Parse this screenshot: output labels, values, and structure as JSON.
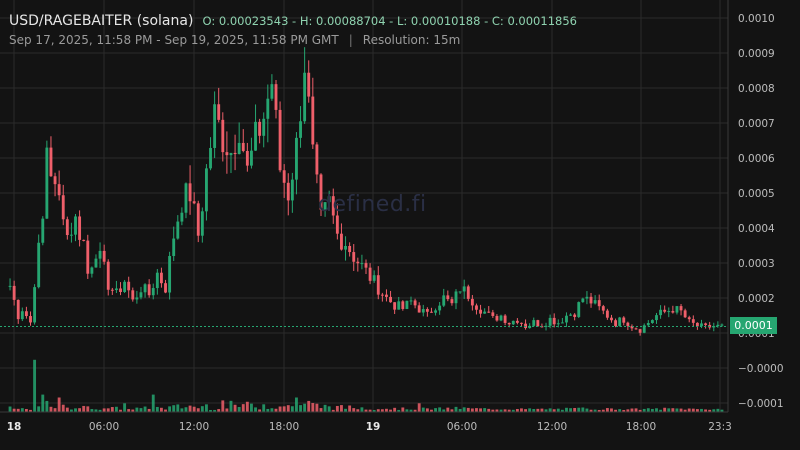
{
  "header": {
    "title": "USD/RAGEBAITER (solana)",
    "ohlc": "O: 0.00023543 - H: 0.00088704 - L: 0.00010188 - C: 0.00011856",
    "range": "Sep 17, 2025, 11:58 PM - Sep 19, 2025, 11:58 PM GMT",
    "separator": "|",
    "resolution": "Resolution: 15m"
  },
  "watermark": "defined.fi",
  "colors": {
    "up": "#26a671",
    "down": "#ef5f6a",
    "grid": "#2b2b2b",
    "background": "#131313"
  },
  "chart_data": {
    "type": "candlestick",
    "ylim": [
      -0.00012,
      0.00103
    ],
    "y_ticks": [
      "0.0010",
      "0.0009",
      "0.0008",
      "0.0007",
      "0.0006",
      "0.0005",
      "0.0004",
      "0.0003",
      "0.0002",
      "0.0001",
      "−0.0000",
      "−0.0001"
    ],
    "y_tick_values": [
      0.001,
      0.0009,
      0.0008,
      0.0007,
      0.0006,
      0.0005,
      0.0004,
      0.0003,
      0.0002,
      0.0001,
      0.0,
      -0.0001
    ],
    "x_ticks": [
      "18",
      "06:00",
      "12:00",
      "18:00",
      "19",
      "06:00",
      "12:00",
      "18:00",
      "23:3"
    ],
    "x_tick_bold": [
      true,
      false,
      false,
      false,
      true,
      false,
      false,
      false,
      false
    ],
    "current_price": 0.00011856,
    "current_price_label": "0.0001",
    "close_path_points": [
      [
        0,
        0.000235
      ],
      [
        2,
        0.00015
      ],
      [
        3,
        0.00017
      ],
      [
        5,
        0.00013
      ],
      [
        6,
        0.00025
      ],
      [
        8,
        0.00042
      ],
      [
        9,
        0.00064
      ],
      [
        11,
        0.0005
      ],
      [
        13,
        0.00046
      ],
      [
        14,
        0.00038
      ],
      [
        16,
        0.00042
      ],
      [
        18,
        0.00036
      ],
      [
        19,
        0.00027
      ],
      [
        21,
        0.00034
      ],
      [
        23,
        0.00028
      ],
      [
        24,
        0.00024
      ],
      [
        26,
        0.00021
      ],
      [
        28,
        0.00025
      ],
      [
        30,
        0.00019
      ],
      [
        32,
        0.00023
      ],
      [
        34,
        0.00021
      ],
      [
        36,
        0.00027
      ],
      [
        38,
        0.00023
      ],
      [
        40,
        0.00038
      ],
      [
        42,
        0.00048
      ],
      [
        44,
        0.0005
      ],
      [
        46,
        0.00038
      ],
      [
        48,
        0.00056
      ],
      [
        50,
        0.00072
      ],
      [
        52,
        0.00066
      ],
      [
        54,
        0.00062
      ],
      [
        56,
        0.0007
      ],
      [
        58,
        0.00056
      ],
      [
        60,
        0.00065
      ],
      [
        62,
        0.00072
      ],
      [
        64,
        0.00082
      ],
      [
        66,
        0.00057
      ],
      [
        68,
        0.0005
      ],
      [
        70,
        0.00063
      ],
      [
        72,
        0.00088
      ],
      [
        74,
        0.0006
      ],
      [
        76,
        0.00042
      ],
      [
        78,
        0.00047
      ],
      [
        80,
        0.00038
      ],
      [
        82,
        0.00036
      ],
      [
        84,
        0.00032
      ],
      [
        86,
        0.00029
      ],
      [
        88,
        0.00026
      ],
      [
        90,
        0.00023
      ],
      [
        92,
        0.0002
      ],
      [
        94,
        0.00018
      ],
      [
        96,
        0.00017
      ],
      [
        98,
        0.00019
      ],
      [
        100,
        0.00017
      ],
      [
        102,
        0.00015
      ],
      [
        104,
        0.00018
      ],
      [
        106,
        0.0002
      ],
      [
        108,
        0.00018
      ],
      [
        110,
        0.00023
      ],
      [
        112,
        0.00021
      ],
      [
        114,
        0.00018
      ],
      [
        116,
        0.00016
      ],
      [
        118,
        0.00014
      ],
      [
        120,
        0.00015
      ],
      [
        122,
        0.00013
      ],
      [
        124,
        0.00014
      ],
      [
        126,
        0.00012
      ],
      [
        128,
        0.00013
      ],
      [
        130,
        0.000125
      ],
      [
        132,
        0.00014
      ],
      [
        134,
        0.00013
      ],
      [
        136,
        0.00015
      ],
      [
        138,
        0.00016
      ],
      [
        140,
        0.0002
      ],
      [
        142,
        0.00019
      ],
      [
        144,
        0.00017
      ],
      [
        146,
        0.00015
      ],
      [
        148,
        0.00013
      ],
      [
        150,
        0.00014
      ],
      [
        152,
        0.00012
      ],
      [
        154,
        0.00011
      ],
      [
        156,
        0.00013
      ],
      [
        158,
        0.00015
      ],
      [
        160,
        0.00016
      ],
      [
        162,
        0.00017
      ],
      [
        164,
        0.00016
      ],
      [
        166,
        0.00013
      ],
      [
        168,
        0.00012
      ],
      [
        170,
        0.000115
      ],
      [
        172,
        0.00012
      ],
      [
        174,
        0.000118
      ]
    ],
    "volume_spikes": [
      [
        6,
        0.9
      ],
      [
        8,
        0.3
      ],
      [
        12,
        0.25
      ],
      [
        28,
        0.15
      ],
      [
        35,
        0.3
      ],
      [
        52,
        0.2
      ],
      [
        70,
        0.25
      ],
      [
        100,
        0.15
      ]
    ]
  }
}
